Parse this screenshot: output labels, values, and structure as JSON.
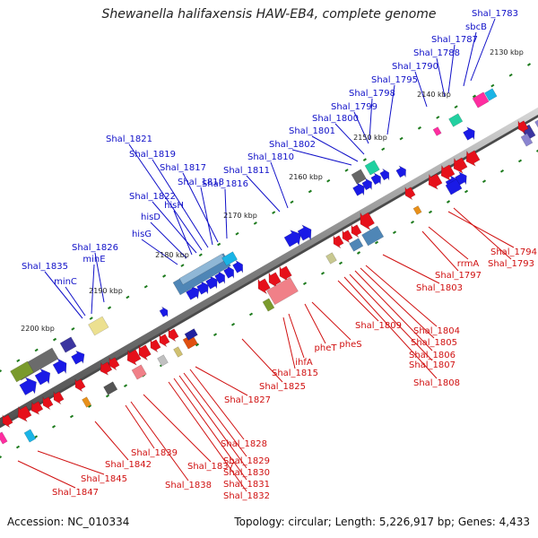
{
  "title": "Shewanella halifaxensis HAW-EB4, complete genome",
  "footer": {
    "accession": "Accession: NC_010334",
    "topology": "Topology: circular; Length: 5,226,917 bp; Genes: 4,433"
  },
  "colors": {
    "forward_label": "#1010c8",
    "reverse_label": "#d01010",
    "backbone": "#8a8a8a",
    "tick": "#1c7a1c"
  },
  "scale_labels": [
    "2130 kbp",
    "2140 kbp",
    "2150 kbp",
    "2160 kbp",
    "2170 kbp",
    "2180 kbp",
    "2190 kbp",
    "2200 kbp"
  ],
  "forward_genes": [
    "Shal_1783",
    "sbcB",
    "Shal_1787",
    "Shal_1788",
    "Shal_1790",
    "Shal_1795",
    "Shal_1798",
    "Shal_1799",
    "Shal_1800",
    "Shal_1801",
    "Shal_1802",
    "Shal_1810",
    "Shal_1811",
    "Shal_1816",
    "Shal_1818",
    "Shal_1817",
    "Shal_1819",
    "Shal_1821",
    "Shal_1822",
    "hisH",
    "hisD",
    "hisG",
    "Shal_1826",
    "minE",
    "Shal_1835",
    "minC"
  ],
  "reverse_genes": [
    "Shal_1794",
    "Shal_1793",
    "rrmA",
    "Shal_1797",
    "Shal_1803",
    "Shal_1804",
    "Shal_1805",
    "Shal_1806",
    "Shal_1807",
    "Shal_1808",
    "Shal_1809",
    "pheS",
    "pheT",
    "ihfA",
    "Shal_1815",
    "Shal_1825",
    "Shal_1827",
    "Shal_1828",
    "Shal_1829",
    "Shal_1830",
    "Shal_1831",
    "Shal_1832",
    "Shal_1837",
    "Shal_1838",
    "Shal_1839",
    "Shal_1842",
    "Shal_1845",
    "Shal_1847"
  ]
}
